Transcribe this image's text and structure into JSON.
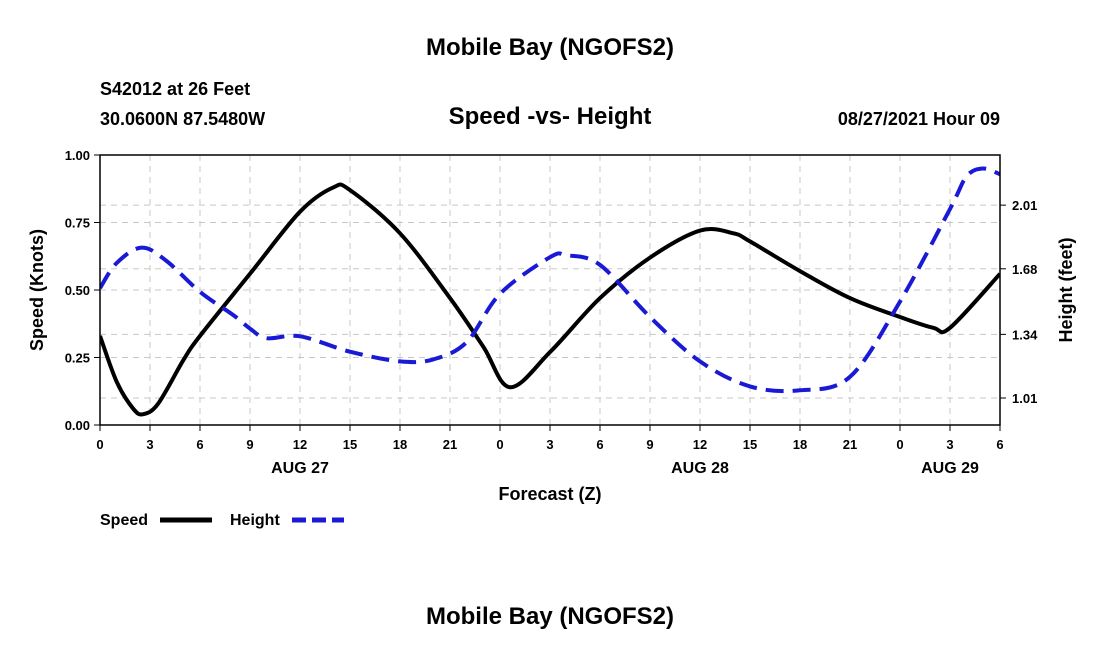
{
  "header": {
    "title": "Mobile Bay (NGOFS2)",
    "station": "S42012 at 26 Feet",
    "coords": "30.0600N  87.5480W",
    "subtitle": "Speed -vs- Height",
    "timestamp": "08/27/2021 Hour 09"
  },
  "footer": {
    "title": "Mobile Bay (NGOFS2)"
  },
  "legend": {
    "speed_label": "Speed",
    "height_label": "Height"
  },
  "colors": {
    "speed": "#000000",
    "height": "#1a1ad6",
    "grid": "#c8c8c8"
  },
  "chart_data": {
    "type": "line",
    "title": "Speed -vs- Height",
    "xlabel": "Forecast (Z)",
    "ylabel": "Speed (Knots)",
    "y2label": "Height (feet)",
    "xlim": [
      0,
      54
    ],
    "ylim": [
      0,
      1.0
    ],
    "y2lim": [
      0.87,
      2.27
    ],
    "x_tick_values": [
      0,
      3,
      6,
      9,
      12,
      15,
      18,
      21,
      24,
      27,
      30,
      33,
      36,
      39,
      42,
      45,
      48,
      51,
      54
    ],
    "x_tick_labels": [
      "0",
      "3",
      "6",
      "9",
      "12",
      "15",
      "18",
      "21",
      "0",
      "3",
      "6",
      "9",
      "12",
      "15",
      "18",
      "21",
      "0",
      "3",
      "6"
    ],
    "date_labels": [
      {
        "x": 12,
        "label": "AUG 27"
      },
      {
        "x": 36,
        "label": "AUG 28"
      },
      {
        "x": 51,
        "label": "AUG 29"
      }
    ],
    "y_ticks": [
      {
        "v": 0.0,
        "label": "0.00"
      },
      {
        "v": 0.25,
        "label": "0.25"
      },
      {
        "v": 0.5,
        "label": "0.50"
      },
      {
        "v": 0.75,
        "label": "0.75"
      },
      {
        "v": 1.0,
        "label": "1.00"
      }
    ],
    "y2_ticks": [
      {
        "v": 1.01,
        "label": "1.01"
      },
      {
        "v": 1.34,
        "label": "1.34"
      },
      {
        "v": 1.68,
        "label": "1.68"
      },
      {
        "v": 2.01,
        "label": "2.01"
      }
    ],
    "grid": true,
    "legend_position": "bottom-left",
    "series": [
      {
        "name": "Speed",
        "axis": "left",
        "style": "solid",
        "x": [
          0,
          1,
          2,
          2.6,
          3.5,
          5,
          6,
          9,
          12,
          14,
          15,
          18,
          21,
          23,
          24.6,
          27,
          30,
          33,
          36,
          38,
          39,
          42,
          45,
          48,
          50,
          51,
          54
        ],
        "y": [
          0.33,
          0.16,
          0.06,
          0.04,
          0.08,
          0.24,
          0.33,
          0.56,
          0.79,
          0.88,
          0.87,
          0.71,
          0.47,
          0.29,
          0.14,
          0.27,
          0.47,
          0.62,
          0.72,
          0.71,
          0.68,
          0.57,
          0.47,
          0.4,
          0.36,
          0.36,
          0.56
        ]
      },
      {
        "name": "Height",
        "axis": "right",
        "style": "dashed",
        "x": [
          0,
          1,
          2.5,
          4,
          6,
          8,
          9,
          10,
          12,
          15,
          18,
          20,
          22,
          24,
          27,
          28,
          30,
          33,
          36,
          39,
          42,
          45,
          48,
          51,
          52,
          53,
          54
        ],
        "y": [
          1.58,
          1.71,
          1.79,
          1.72,
          1.56,
          1.44,
          1.37,
          1.32,
          1.33,
          1.25,
          1.2,
          1.21,
          1.3,
          1.55,
          1.74,
          1.75,
          1.7,
          1.43,
          1.2,
          1.07,
          1.05,
          1.12,
          1.51,
          1.99,
          2.16,
          2.2,
          2.17
        ]
      }
    ]
  }
}
